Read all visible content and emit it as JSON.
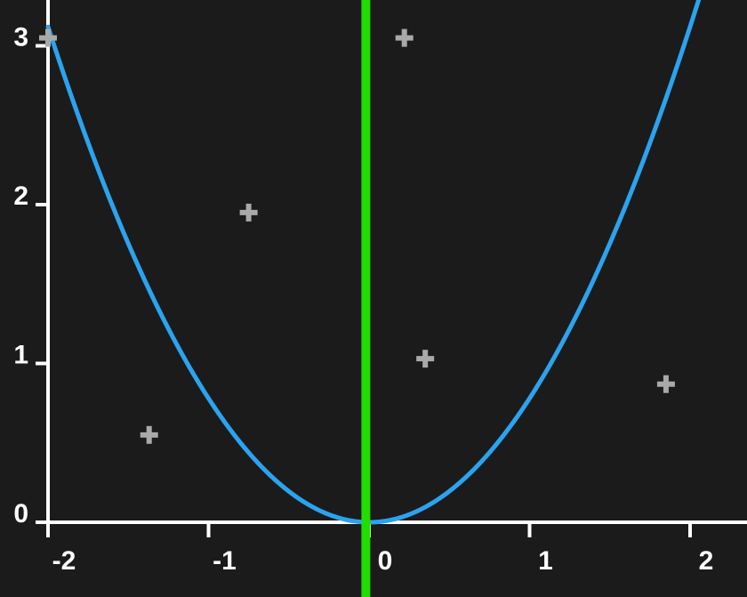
{
  "chart_data": {
    "type": "line",
    "title": "",
    "xlabel": "",
    "ylabel": "",
    "xlim": [
      -2.0,
      2.3
    ],
    "ylim": [
      0,
      3.25
    ],
    "x_ticks": [
      {
        "value": -2,
        "label": "-2"
      },
      {
        "value": -1,
        "label": "-1"
      },
      {
        "value": 0,
        "label": "0"
      },
      {
        "value": 1,
        "label": "1"
      },
      {
        "value": 2,
        "label": "2"
      }
    ],
    "y_ticks": [
      {
        "value": 0,
        "label": "0"
      },
      {
        "value": 1,
        "label": "1"
      },
      {
        "value": 2,
        "label": "2"
      },
      {
        "value": 3,
        "label": "3"
      }
    ],
    "grid": false,
    "legend": "none",
    "curve": {
      "function": "y = 0.78 * x^2",
      "coefficient": 0.78,
      "x_range": [
        -2.0,
        2.3
      ],
      "color": "#2ba3ef"
    },
    "vertical_line": {
      "x": -0.02,
      "color": "#22dd00"
    },
    "points": [
      {
        "x": -2.0,
        "y": 3.05
      },
      {
        "x": -1.37,
        "y": 0.55
      },
      {
        "x": -0.75,
        "y": 1.95
      },
      {
        "x": 0.22,
        "y": 3.05
      },
      {
        "x": 0.35,
        "y": 1.03
      },
      {
        "x": 1.85,
        "y": 0.87
      }
    ],
    "point_marker": "plus",
    "point_color": "#a9a9a9"
  },
  "colors": {
    "background": "#1b1b1b",
    "axis": "#ffffff",
    "tick_label": "#ffffff"
  }
}
